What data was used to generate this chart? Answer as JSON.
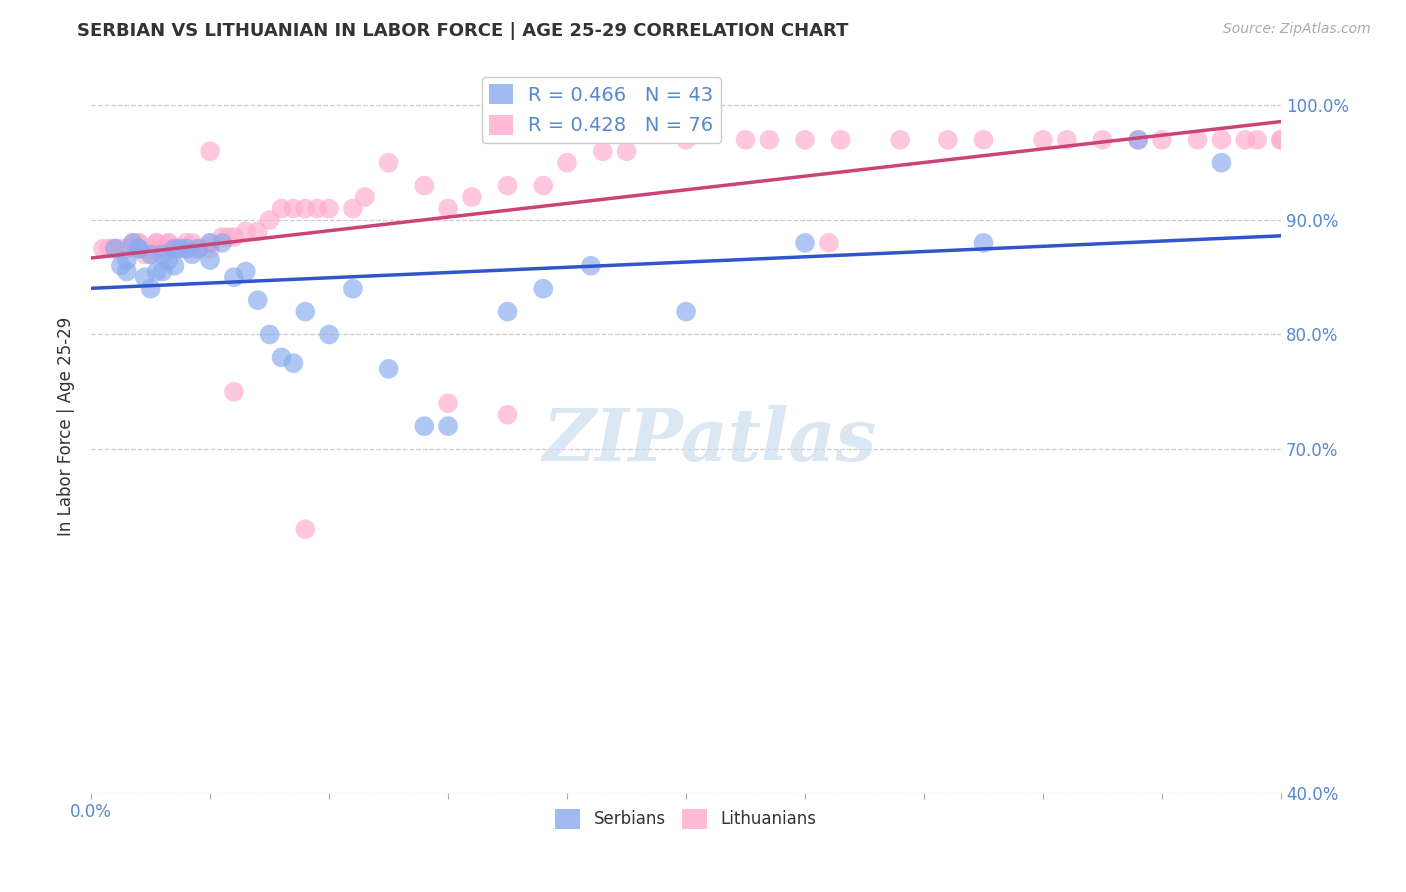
{
  "title": "SERBIAN VS LITHUANIAN IN LABOR FORCE | AGE 25-29 CORRELATION CHART",
  "source_text": "Source: ZipAtlas.com",
  "ylabel": "In Labor Force | Age 25-29",
  "xlim": [
    0.0,
    1.0
  ],
  "ylim": [
    0.4,
    1.04
  ],
  "y_tick_positions": [
    0.4,
    0.7,
    0.8,
    0.9,
    1.0
  ],
  "y_tick_labels": [
    "40.0%",
    "70.0%",
    "80.0%",
    "90.0%",
    "100.0%"
  ],
  "x_tick_positions": [
    0.0,
    0.1,
    0.2,
    0.3,
    0.4,
    0.5,
    0.6,
    0.7,
    0.8,
    0.9,
    1.0
  ],
  "x_tick_labels": [
    "0.0%",
    "",
    "",
    "",
    "",
    "",
    "",
    "",
    "",
    "",
    ""
  ],
  "x_tick_labels_show_only_ends": true,
  "grid_color": "#cccccc",
  "background_color": "#ffffff",
  "serbian_color": "#88aaee",
  "serbian_line_color": "#3355cc",
  "lithuanian_color": "#ffaacc",
  "lithuanian_line_color": "#cc4477",
  "legend_serbian_label": "R = 0.466   N = 43",
  "legend_lithuanian_label": "R = 0.428   N = 76",
  "watermark": "ZIPatlas",
  "tick_color": "#5588cc",
  "serbian_scatter_x": [
    0.02,
    0.025,
    0.03,
    0.03,
    0.035,
    0.04,
    0.04,
    0.045,
    0.05,
    0.05,
    0.055,
    0.06,
    0.06,
    0.065,
    0.07,
    0.07,
    0.075,
    0.08,
    0.085,
    0.09,
    0.1,
    0.1,
    0.11,
    0.12,
    0.13,
    0.14,
    0.15,
    0.16,
    0.17,
    0.18,
    0.2,
    0.22,
    0.25,
    0.28,
    0.3,
    0.35,
    0.38,
    0.42,
    0.5,
    0.6,
    0.75,
    0.88,
    0.95
  ],
  "serbian_scatter_y": [
    0.875,
    0.86,
    0.855,
    0.865,
    0.88,
    0.875,
    0.875,
    0.85,
    0.84,
    0.87,
    0.855,
    0.87,
    0.855,
    0.865,
    0.875,
    0.86,
    0.875,
    0.875,
    0.87,
    0.875,
    0.88,
    0.865,
    0.88,
    0.85,
    0.855,
    0.83,
    0.8,
    0.78,
    0.775,
    0.82,
    0.8,
    0.84,
    0.77,
    0.72,
    0.72,
    0.82,
    0.84,
    0.86,
    0.82,
    0.88,
    0.88,
    0.97,
    0.95
  ],
  "lithuanian_scatter_x": [
    0.01,
    0.015,
    0.02,
    0.02,
    0.025,
    0.03,
    0.03,
    0.035,
    0.04,
    0.04,
    0.045,
    0.05,
    0.05,
    0.055,
    0.055,
    0.06,
    0.06,
    0.065,
    0.065,
    0.07,
    0.07,
    0.075,
    0.08,
    0.08,
    0.085,
    0.09,
    0.09,
    0.1,
    0.1,
    0.11,
    0.115,
    0.12,
    0.13,
    0.14,
    0.15,
    0.16,
    0.17,
    0.18,
    0.19,
    0.2,
    0.22,
    0.23,
    0.25,
    0.28,
    0.3,
    0.32,
    0.35,
    0.38,
    0.4,
    0.43,
    0.45,
    0.5,
    0.55,
    0.57,
    0.6,
    0.63,
    0.68,
    0.72,
    0.75,
    0.8,
    0.82,
    0.85,
    0.88,
    0.9,
    0.93,
    0.95,
    0.97,
    0.98,
    1.0,
    1.0,
    0.1,
    0.12,
    0.3,
    0.35,
    0.18,
    0.62
  ],
  "lithuanian_scatter_y": [
    0.875,
    0.875,
    0.875,
    0.875,
    0.875,
    0.875,
    0.875,
    0.88,
    0.88,
    0.88,
    0.87,
    0.87,
    0.875,
    0.88,
    0.88,
    0.875,
    0.875,
    0.88,
    0.88,
    0.875,
    0.875,
    0.875,
    0.875,
    0.88,
    0.88,
    0.875,
    0.875,
    0.88,
    0.875,
    0.885,
    0.885,
    0.885,
    0.89,
    0.89,
    0.9,
    0.91,
    0.91,
    0.91,
    0.91,
    0.91,
    0.91,
    0.92,
    0.95,
    0.93,
    0.91,
    0.92,
    0.93,
    0.93,
    0.95,
    0.96,
    0.96,
    0.97,
    0.97,
    0.97,
    0.97,
    0.97,
    0.97,
    0.97,
    0.97,
    0.97,
    0.97,
    0.97,
    0.97,
    0.97,
    0.97,
    0.97,
    0.97,
    0.97,
    0.97,
    0.97,
    0.96,
    0.75,
    0.74,
    0.73,
    0.63,
    0.88
  ]
}
